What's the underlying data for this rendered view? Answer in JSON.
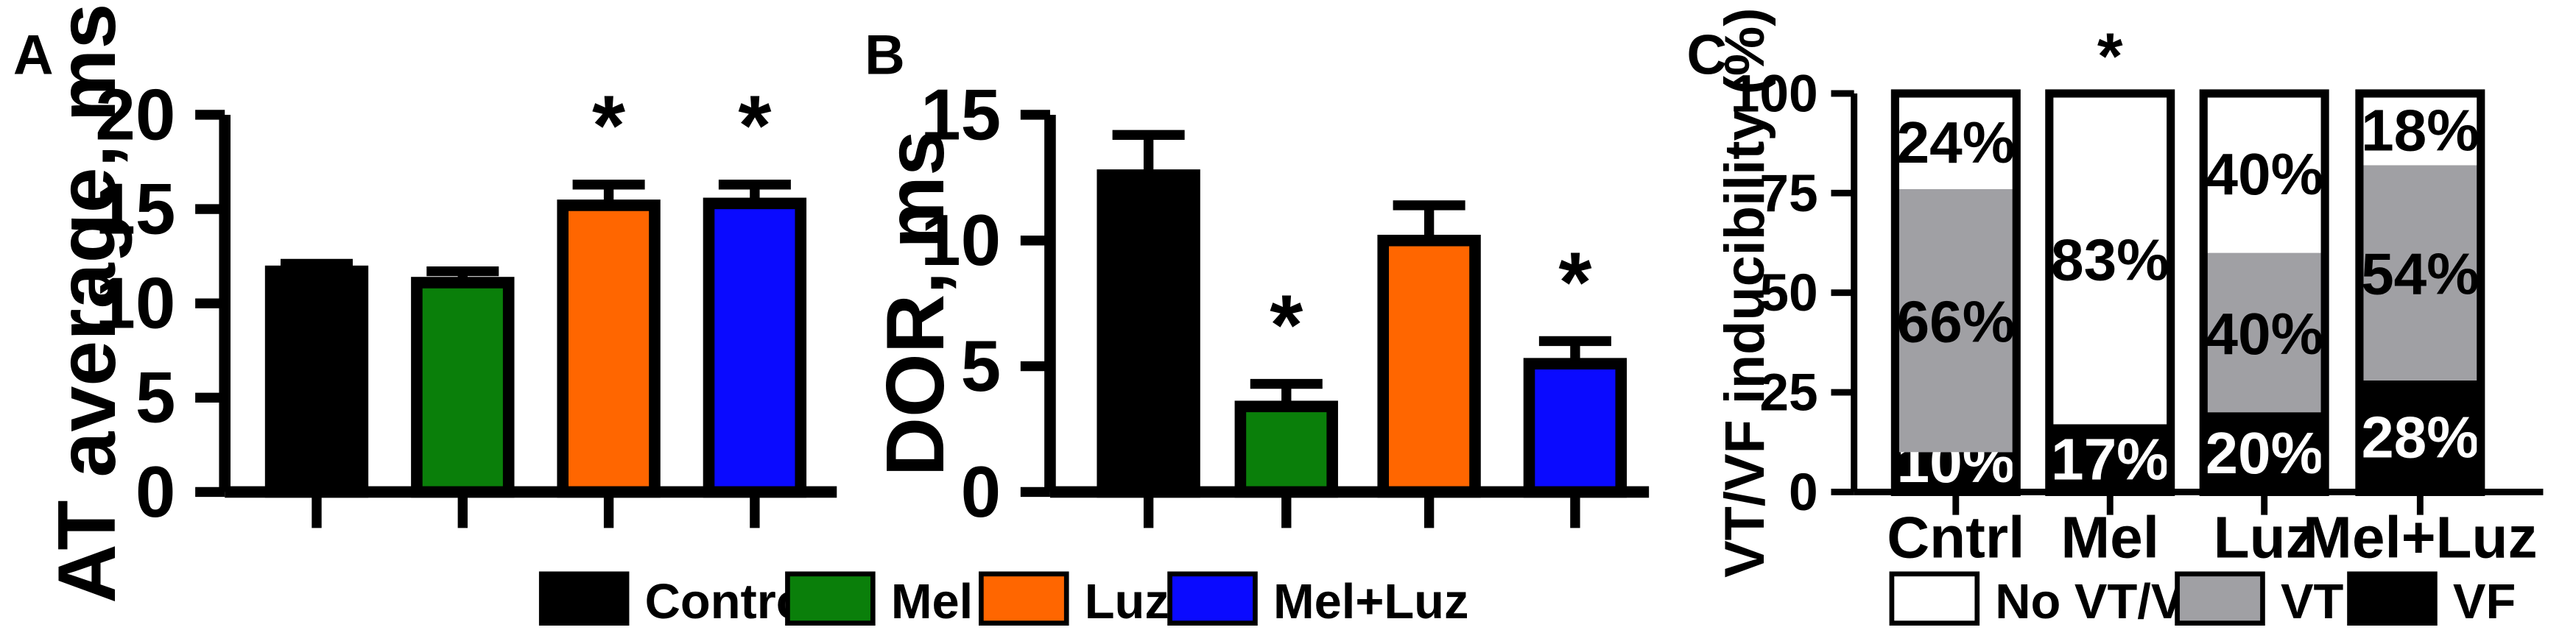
{
  "panels": {
    "A": {
      "letter": "A"
    },
    "B": {
      "letter": "B"
    },
    "C": {
      "letter": "C"
    }
  },
  "colors": {
    "Control": "#000000",
    "Mel": "#0a7f0a",
    "Luz": "#ff6600",
    "Mel+Luz": "#0a0aff",
    "No VT/VF": "#ffffff",
    "VT": "#a0a0a4",
    "VF": "#000000"
  },
  "legend_groups": [
    "Control",
    "Mel",
    "Luz",
    "Mel+Luz"
  ],
  "legend_stack": [
    "No VT/VF",
    "VT",
    "VF"
  ],
  "chart_data": [
    {
      "panel": "A",
      "type": "bar",
      "categories": [
        "Control",
        "Mel",
        "Luz",
        "Mel+Luz"
      ],
      "values": [
        11.7,
        11.1,
        15.2,
        15.3
      ],
      "errors": [
        0.4,
        0.6,
        1.1,
        1.0
      ],
      "significant": [
        false,
        false,
        true,
        true
      ],
      "ylabel": "AT average, ms",
      "ylim": [
        0,
        20
      ],
      "yticks": [
        0,
        5,
        10,
        15,
        20
      ],
      "significance_marker": "*"
    },
    {
      "panel": "B",
      "type": "bar",
      "categories": [
        "Control",
        "Mel",
        "Luz",
        "Mel+Luz"
      ],
      "values": [
        12.6,
        3.4,
        10.0,
        5.1
      ],
      "errors": [
        1.6,
        0.9,
        1.4,
        0.9
      ],
      "significant": [
        false,
        true,
        false,
        true
      ],
      "ylabel": "DOR, ms",
      "ylim": [
        0,
        15
      ],
      "yticks": [
        0,
        5,
        10,
        15
      ],
      "significance_marker": "*"
    },
    {
      "panel": "C",
      "type": "bar",
      "stacked": true,
      "categories": [
        "Cntrl",
        "Mel",
        "Luz",
        "Mel+Luz"
      ],
      "series": [
        {
          "name": "VF",
          "values": [
            10,
            17,
            20,
            28
          ],
          "labels": [
            "10%",
            "17%",
            "20%",
            "28%"
          ]
        },
        {
          "name": "VT",
          "values": [
            66,
            0,
            40,
            54
          ],
          "labels": [
            "66%",
            "",
            "40%",
            "54%"
          ]
        },
        {
          "name": "No VT/VF",
          "values": [
            24,
            83,
            40,
            18
          ],
          "labels": [
            "24%",
            "83%",
            "40%",
            "18%"
          ]
        }
      ],
      "significant": [
        false,
        true,
        false,
        false
      ],
      "ylabel": "VT/VF inducibility (%)",
      "ylim": [
        0,
        100
      ],
      "yticks": [
        0,
        25,
        50,
        75,
        100
      ],
      "significance_marker": "*"
    }
  ]
}
